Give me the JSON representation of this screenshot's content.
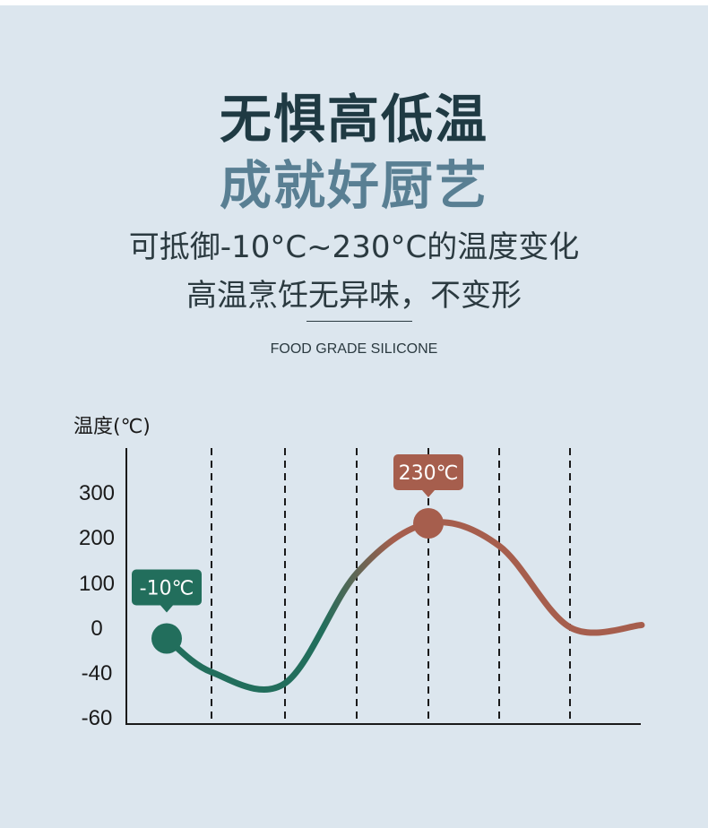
{
  "header": {
    "title_line1": "无惧高低温",
    "title_line2": "成就好厨艺",
    "subtitle_line1": "可抵御-10°C~230°C的温度变化",
    "subtitle_line2": "高温烹饪无异味，不变形",
    "tag": "FOOD GRADE SILICONE"
  },
  "colors": {
    "background": "#dce6ee",
    "cold": "#226e5c",
    "hot": "#a65e4d",
    "title_dark": "#1f3a43",
    "title_blue": "#597f93"
  },
  "chart_data": {
    "type": "line",
    "ylabel": "温度(℃)",
    "y_ticks": [
      "300",
      "200",
      "100",
      "0",
      "-40",
      "-60"
    ],
    "y_tick_values": [
      300,
      200,
      100,
      0,
      -40,
      -60
    ],
    "grid": "vertical dashed",
    "series": [
      {
        "points": [
          {
            "x": 0,
            "y": -10
          },
          {
            "x": 1,
            "y": -40
          },
          {
            "x": 2,
            "y": -45
          },
          {
            "x": 3,
            "y": 120
          },
          {
            "x": 4,
            "y": 230
          },
          {
            "x": 5,
            "y": 180
          },
          {
            "x": 6,
            "y": 0
          },
          {
            "x": 7,
            "y": 5
          }
        ]
      }
    ],
    "annotations": [
      {
        "label": "-10℃",
        "x": 0,
        "y": -10,
        "color": "cold"
      },
      {
        "label": "230℃",
        "x": 4,
        "y": 230,
        "color": "hot"
      }
    ]
  }
}
